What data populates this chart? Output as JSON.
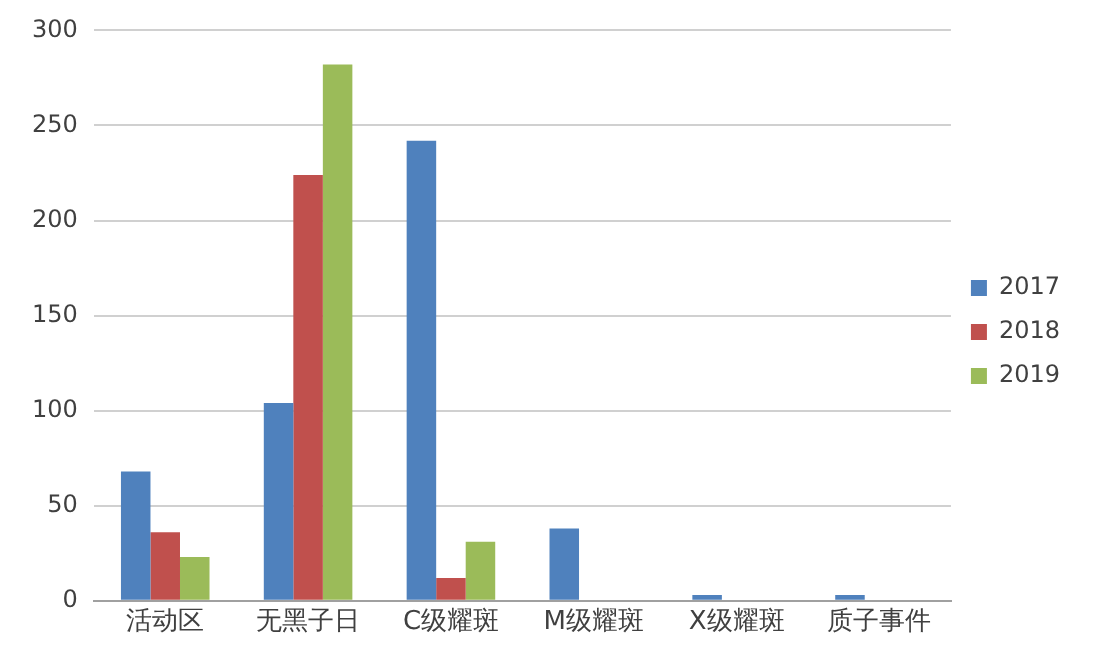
{
  "chart_data": {
    "type": "bar",
    "categories": [
      "活动区",
      "无黑子日",
      "C级耀斑",
      "M级耀斑",
      "X级耀斑",
      "质子事件"
    ],
    "series": [
      {
        "name": "2017",
        "color": "#4f81bd",
        "values": [
          68,
          104,
          242,
          38,
          3,
          3
        ]
      },
      {
        "name": "2018",
        "color": "#c0504d",
        "values": [
          36,
          224,
          12,
          0,
          0,
          0
        ]
      },
      {
        "name": "2019",
        "color": "#9bbb59",
        "values": [
          23,
          282,
          31,
          0,
          0,
          0
        ]
      }
    ],
    "ylim": [
      0,
      300
    ],
    "yticks": [
      0,
      50,
      100,
      150,
      200,
      250,
      300
    ],
    "grid": "y",
    "legend": "right"
  }
}
